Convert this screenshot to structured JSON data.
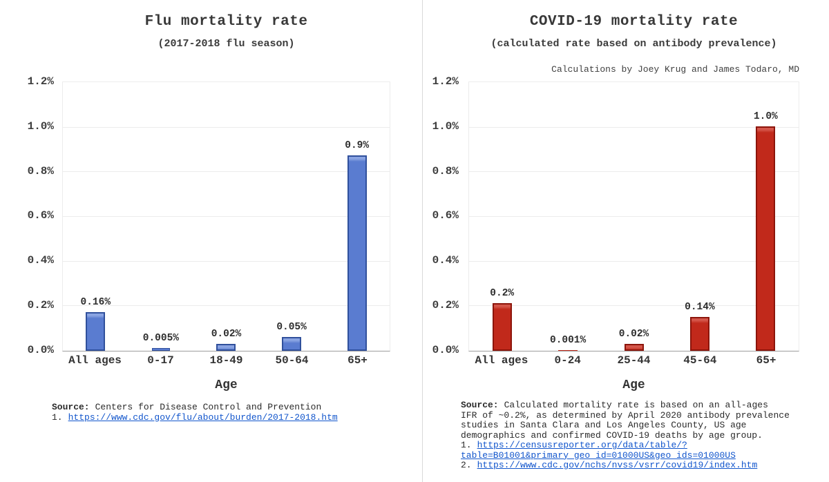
{
  "palette": {
    "link_color": "#1155cc",
    "divider_color": "#d9d9d9",
    "grid_color": "#ececec",
    "axis_line_color": "#9c9c9c"
  },
  "chart_data": [
    {
      "type": "bar",
      "title": "Flu mortality rate",
      "subtitle": "(2017-2018 flu season)",
      "xlabel": "Age",
      "categories": [
        "All ages",
        "0-17",
        "18-49",
        "50-64",
        "65+"
      ],
      "values_percent": [
        0.16,
        0.005,
        0.02,
        0.05,
        0.9
      ],
      "plotted_percent": [
        0.16,
        0.005,
        0.02,
        0.05,
        0.86
      ],
      "bar_value_labels": [
        "0.16%",
        "0.005%",
        "0.02%",
        "0.05%",
        "0.9%"
      ],
      "y_axis": {
        "tick_labels": [
          "1.2%",
          "1.0%",
          "0.8%",
          "0.6%",
          "0.4%",
          "0.2%",
          "0.0%"
        ],
        "min": 0,
        "max": 1.2,
        "step": 0.2,
        "grid": true
      },
      "legend": "none",
      "bar_color": {
        "fill": "#5a7cd0",
        "border": "#30509c",
        "highlight": "#8aa4e2"
      },
      "source": {
        "label": "Source:",
        "lines": [
          "Centers for Disease Control and Prevention"
        ],
        "links": [
          {
            "prefix": "1.",
            "url": "https://www.cdc.gov/flu/about/burden/2017-2018.htm"
          }
        ]
      }
    },
    {
      "type": "bar",
      "title": "COVID-19 mortality rate",
      "subtitle": "(calculated rate based on antibody prevalence)",
      "attribution": "Calculations by Joey Krug and James Todaro, MD",
      "xlabel": "Age",
      "categories": [
        "All ages",
        "0-24",
        "25-44",
        "45-64",
        "65+"
      ],
      "values_percent": [
        0.2,
        0.001,
        0.02,
        0.14,
        1.0
      ],
      "plotted_percent": [
        0.2,
        0.001,
        0.02,
        0.14,
        0.99
      ],
      "bar_value_labels": [
        "0.2%",
        "0.001%",
        "0.02%",
        "0.14%",
        "1.0%"
      ],
      "y_axis": {
        "tick_labels": [
          "1.2%",
          "1.0%",
          "0.8%",
          "0.6%",
          "0.4%",
          "0.2%",
          "0.0%"
        ],
        "min": 0,
        "max": 1.2,
        "step": 0.2,
        "grid": true
      },
      "legend": "none",
      "bar_color": {
        "fill": "#c1291b",
        "border": "#8c150b",
        "highlight": "#d4564a"
      },
      "source": {
        "label": "Source:",
        "lines": [
          "Calculated mortality rate is based on an all-ages",
          "IFR of ~0.2%, as determined by April 2020 antibody prevalence",
          "studies in Santa Clara and Los Angeles County, US age",
          "demographics and confirmed COVID-19 deaths by age group."
        ],
        "links": [
          {
            "prefix": "1.",
            "url": "https://censusreporter.org/data/table/?table=B01001&primary_geo_id=01000US&geo_ids=01000US"
          },
          {
            "prefix": "2.",
            "url": "https://www.cdc.gov/nchs/nvss/vsrr/covid19/index.htm"
          }
        ]
      }
    }
  ]
}
